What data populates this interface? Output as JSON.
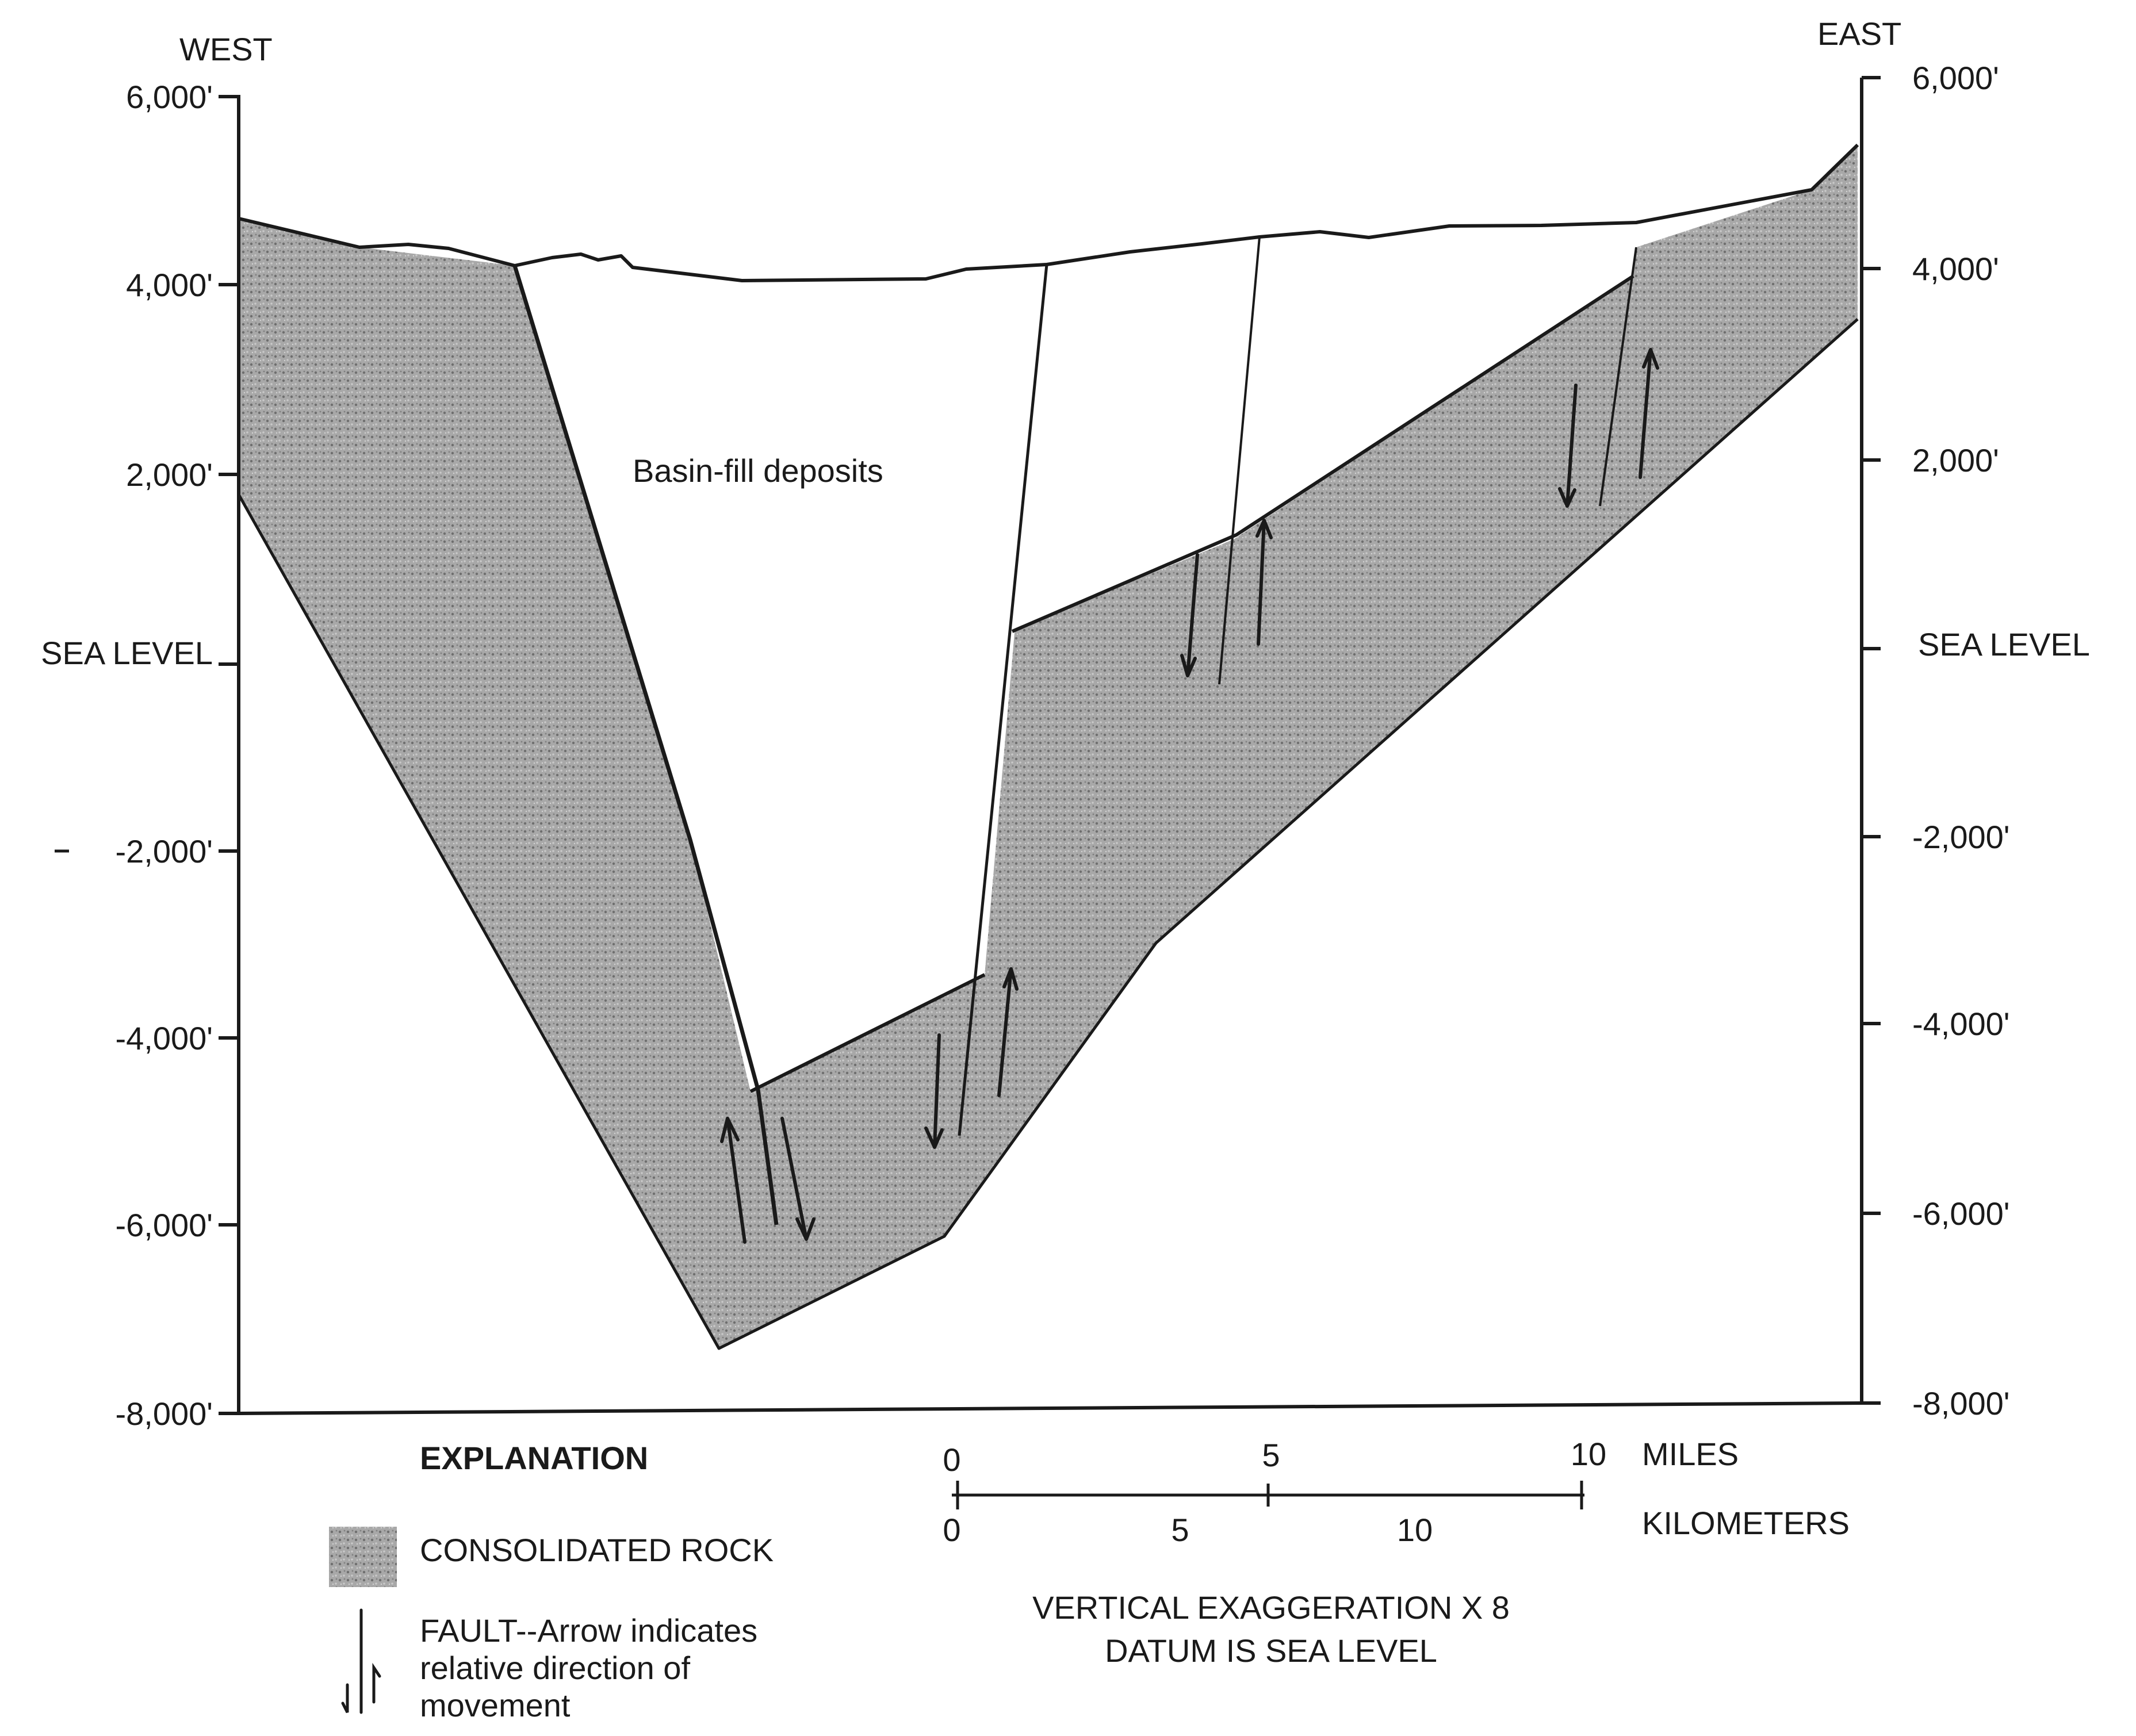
{
  "directions": {
    "west": "WEST",
    "east": "EAST"
  },
  "left_axis": [
    "6,000'",
    "4,000'",
    "2,000'",
    "SEA LEVEL",
    "-2,000'",
    "-4,000'",
    "-6,000'",
    "-8,000'"
  ],
  "right_axis": [
    "6,000'",
    "4,000'",
    "2,000'",
    "SEA LEVEL",
    "-2,000'",
    "-4,000'",
    "-6,000'",
    "-8,000'"
  ],
  "basin_label": "Basin-fill deposits",
  "explanation": {
    "title": "EXPLANATION",
    "rock_label": "CONSOLIDATED ROCK",
    "fault_label_lines": [
      "FAULT--Arrow indicates",
      "relative direction of",
      "movement"
    ]
  },
  "scale": {
    "miles_ticks": [
      "0",
      "5",
      "10"
    ],
    "miles_unit": "MILES",
    "km_ticks": [
      "0",
      "5",
      "10"
    ],
    "km_unit": "KILOMETERS",
    "notes": [
      "VERTICAL EXAGGERATION X 8",
      "DATUM IS SEA LEVEL"
    ]
  },
  "colors": {
    "rock": "#a8a8a8",
    "line": "#1a1a1a",
    "fill": "#ffffff"
  }
}
